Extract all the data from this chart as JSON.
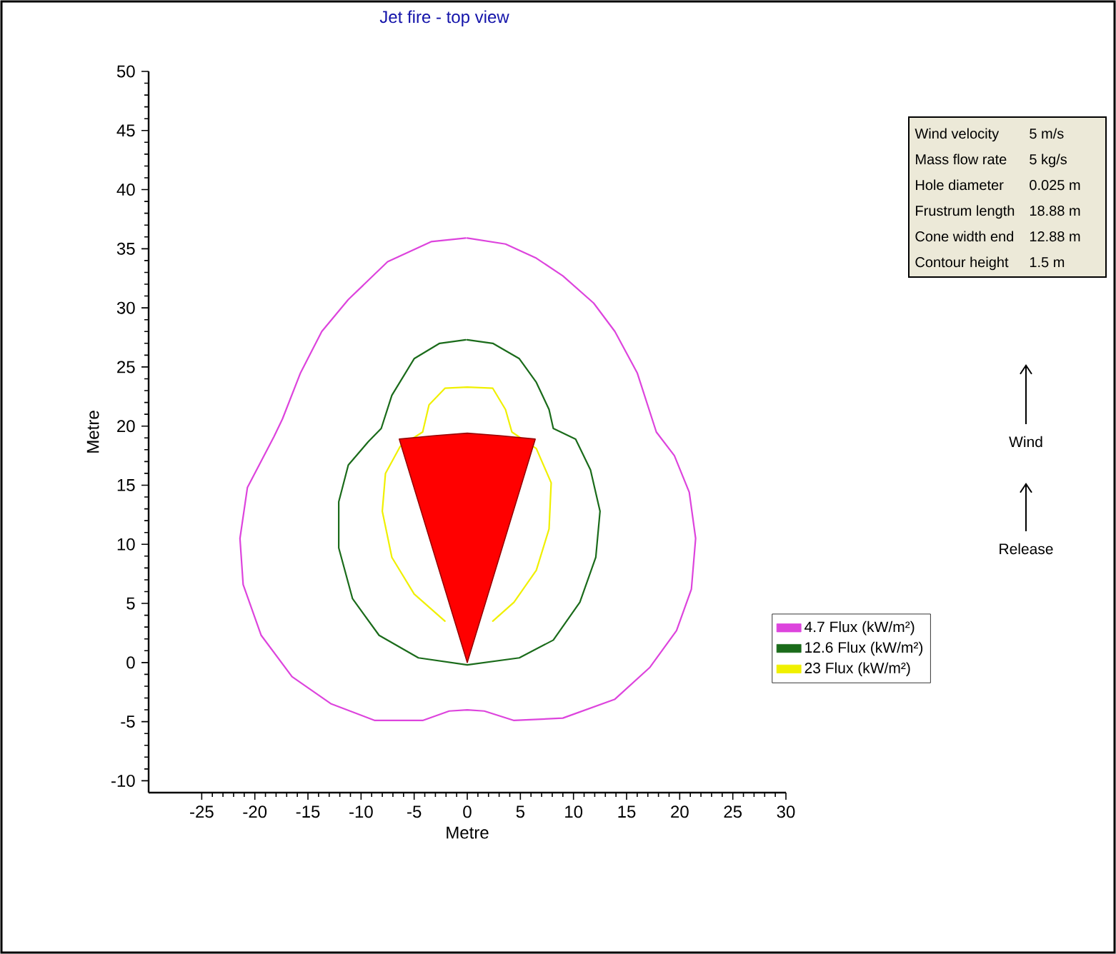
{
  "chart_data": {
    "type": "line",
    "title": "Jet fire - top view",
    "xlabel": "Metre",
    "ylabel": "Metre",
    "xlim": [
      -30,
      30
    ],
    "xticks": [
      -25,
      -20,
      -15,
      -10,
      -5,
      0,
      5,
      10,
      15,
      20,
      25,
      30
    ],
    "ylim": [
      -11,
      50
    ],
    "yticks": [
      -10,
      -5,
      0,
      5,
      10,
      15,
      20,
      25,
      30,
      35,
      40,
      45,
      50
    ],
    "legend": "bottom right",
    "annotations": [
      "Wind velocity",
      "5 m/s",
      "Mass flow rate",
      "5 kg/s",
      "Hole diameter",
      "0.025 m",
      "Frustrum length",
      "18.88 m",
      "Cone width end",
      "12.88 m",
      "Contour height",
      "1.5 m",
      "Wind",
      "Release"
    ],
    "series": [
      {
        "name": "4.7 Flux (kW/m²)",
        "color": "#dd44dd",
        "x": [
          0,
          3.6,
          6.5,
          9.0,
          11.9,
          13.9,
          16.0,
          17.8,
          19.5,
          20.9,
          21.5,
          21.1,
          19.7,
          17.2,
          13.9,
          9.0,
          4.4,
          1.6,
          0,
          -1.7,
          -4.2,
          -8.7,
          -12.8,
          -16.5,
          -19.4,
          -21.1,
          -21.4,
          -20.7,
          -18.2,
          -17.4,
          -15.7,
          -13.7,
          -11.2,
          -7.5,
          -3.4,
          -0.15
        ],
        "values": [
          35.9,
          35.4,
          34.2,
          32.7,
          30.4,
          28.0,
          24.5,
          19.5,
          17.5,
          14.4,
          10.5,
          6.2,
          2.7,
          -0.4,
          -3.1,
          -4.7,
          -4.9,
          -4.1,
          -4.0,
          -4.1,
          -4.9,
          -4.9,
          -3.5,
          -1.2,
          2.3,
          6.6,
          10.5,
          14.8,
          19.1,
          20.6,
          24.5,
          28.0,
          30.7,
          33.9,
          35.6,
          35.9
        ]
      },
      {
        "name": "12.6 Flux (kW/m²)",
        "color": "#1a6b1a",
        "x": [
          0,
          2.4,
          4.9,
          6.5,
          7.7,
          8.1,
          10.2,
          11.6,
          12.5,
          12.1,
          10.6,
          8.1,
          4.9,
          0,
          -4.6,
          -8.3,
          -10.8,
          -12.1,
          -12.1,
          -11.2,
          -9.3,
          -8.1,
          -7.1,
          -5.0,
          -2.6,
          -0.15
        ],
        "values": [
          27.3,
          27.0,
          25.7,
          23.7,
          21.4,
          19.8,
          18.9,
          16.3,
          12.8,
          8.9,
          5.1,
          1.9,
          0.4,
          -0.2,
          0.4,
          2.3,
          5.4,
          9.7,
          13.6,
          16.7,
          18.7,
          19.8,
          22.6,
          25.7,
          27.0,
          27.3
        ]
      },
      {
        "name": "23 Flux (kW/m²)",
        "color": "#f0f000",
        "x": [
          -2.1,
          -5.0,
          -7.1,
          -8.0,
          -7.7,
          -6.3,
          -4.2,
          -3.6,
          -2.1,
          0,
          2.4,
          3.6,
          4.2,
          6.5,
          7.9,
          7.7,
          6.5,
          4.4,
          2.4
        ],
        "values": [
          3.5,
          5.8,
          8.9,
          12.8,
          16.0,
          18.3,
          19.5,
          21.8,
          23.2,
          23.3,
          23.2,
          21.4,
          19.5,
          18.1,
          15.2,
          11.3,
          7.8,
          5.1,
          3.5
        ]
      },
      {
        "color": "#ff0000",
        "type": "area",
        "x": [
          0,
          6.4,
          3,
          0,
          -3,
          -6.4
        ],
        "values": [
          0,
          18.9,
          19.2,
          19.4,
          19.2,
          18.9
        ]
      }
    ]
  }
}
